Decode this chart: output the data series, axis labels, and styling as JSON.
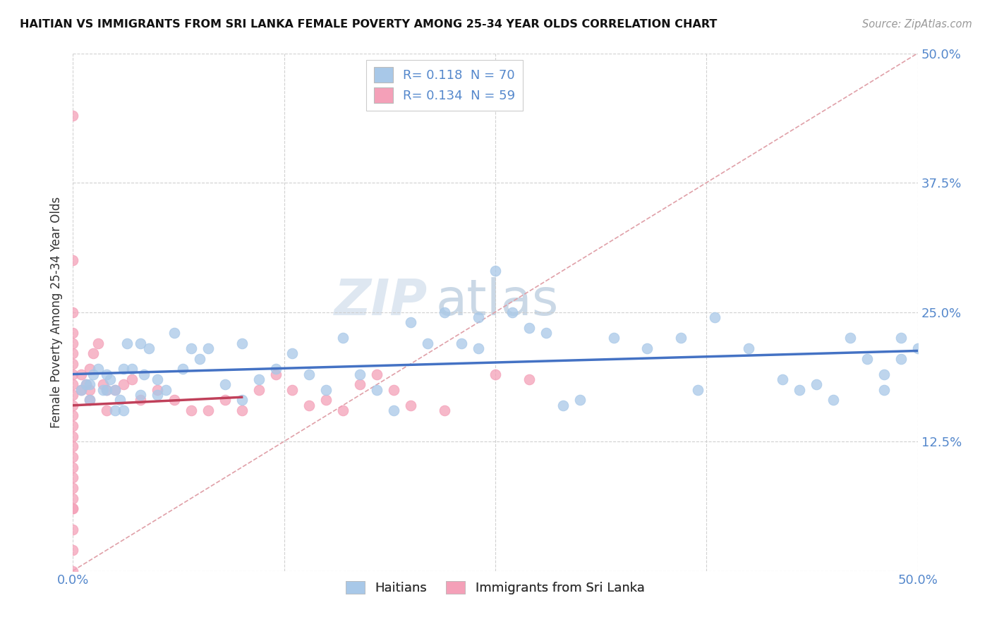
{
  "title": "HAITIAN VS IMMIGRANTS FROM SRI LANKA FEMALE POVERTY AMONG 25-34 YEAR OLDS CORRELATION CHART",
  "source": "Source: ZipAtlas.com",
  "ylabel": "Female Poverty Among 25-34 Year Olds",
  "xlim": [
    0,
    0.5
  ],
  "ylim": [
    0,
    0.5
  ],
  "haitian_R": 0.118,
  "haitian_N": 70,
  "srilanka_R": 0.134,
  "srilanka_N": 59,
  "haitian_color": "#A8C8E8",
  "srilanka_color": "#F4A0B8",
  "haitian_line_color": "#4472C4",
  "srilanka_line_color": "#C0405A",
  "diag_color": "#E0A0A8",
  "background_color": "#FFFFFF",
  "grid_color": "#CCCCCC",
  "tick_color": "#5588CC",
  "legend_labels": [
    "Haitians",
    "Immigrants from Sri Lanka"
  ],
  "haitian_x": [
    0.005,
    0.008,
    0.01,
    0.01,
    0.012,
    0.015,
    0.018,
    0.02,
    0.02,
    0.022,
    0.025,
    0.025,
    0.028,
    0.03,
    0.03,
    0.032,
    0.035,
    0.04,
    0.04,
    0.042,
    0.045,
    0.05,
    0.05,
    0.055,
    0.06,
    0.065,
    0.07,
    0.075,
    0.08,
    0.09,
    0.1,
    0.1,
    0.11,
    0.12,
    0.13,
    0.14,
    0.15,
    0.16,
    0.17,
    0.18,
    0.19,
    0.2,
    0.21,
    0.22,
    0.23,
    0.24,
    0.24,
    0.25,
    0.26,
    0.27,
    0.28,
    0.29,
    0.3,
    0.32,
    0.34,
    0.36,
    0.37,
    0.38,
    0.4,
    0.42,
    0.43,
    0.44,
    0.45,
    0.46,
    0.47,
    0.48,
    0.48,
    0.49,
    0.49,
    0.5
  ],
  "haitian_y": [
    0.175,
    0.18,
    0.165,
    0.18,
    0.19,
    0.195,
    0.175,
    0.19,
    0.175,
    0.185,
    0.175,
    0.155,
    0.165,
    0.155,
    0.195,
    0.22,
    0.195,
    0.22,
    0.17,
    0.19,
    0.215,
    0.185,
    0.17,
    0.175,
    0.23,
    0.195,
    0.215,
    0.205,
    0.215,
    0.18,
    0.165,
    0.22,
    0.185,
    0.195,
    0.21,
    0.19,
    0.175,
    0.225,
    0.19,
    0.175,
    0.155,
    0.24,
    0.22,
    0.25,
    0.22,
    0.245,
    0.215,
    0.29,
    0.25,
    0.235,
    0.23,
    0.16,
    0.165,
    0.225,
    0.215,
    0.225,
    0.175,
    0.245,
    0.215,
    0.185,
    0.175,
    0.18,
    0.165,
    0.225,
    0.205,
    0.19,
    0.175,
    0.225,
    0.205,
    0.215
  ],
  "srilanka_x": [
    0.0,
    0.0,
    0.0,
    0.0,
    0.0,
    0.0,
    0.0,
    0.0,
    0.0,
    0.0,
    0.0,
    0.0,
    0.0,
    0.0,
    0.0,
    0.0,
    0.0,
    0.0,
    0.0,
    0.0,
    0.0,
    0.0,
    0.0,
    0.0,
    0.0,
    0.005,
    0.005,
    0.008,
    0.01,
    0.01,
    0.01,
    0.012,
    0.015,
    0.018,
    0.02,
    0.02,
    0.025,
    0.03,
    0.035,
    0.04,
    0.05,
    0.06,
    0.07,
    0.08,
    0.09,
    0.1,
    0.11,
    0.12,
    0.13,
    0.14,
    0.15,
    0.16,
    0.17,
    0.18,
    0.19,
    0.2,
    0.22,
    0.25,
    0.27
  ],
  "srilanka_y": [
    0.0,
    0.02,
    0.04,
    0.06,
    0.06,
    0.07,
    0.08,
    0.09,
    0.1,
    0.11,
    0.12,
    0.13,
    0.14,
    0.15,
    0.16,
    0.17,
    0.18,
    0.19,
    0.2,
    0.21,
    0.22,
    0.23,
    0.25,
    0.3,
    0.44,
    0.175,
    0.19,
    0.18,
    0.195,
    0.175,
    0.165,
    0.21,
    0.22,
    0.18,
    0.155,
    0.175,
    0.175,
    0.18,
    0.185,
    0.165,
    0.175,
    0.165,
    0.155,
    0.155,
    0.165,
    0.155,
    0.175,
    0.19,
    0.175,
    0.16,
    0.165,
    0.155,
    0.18,
    0.19,
    0.175,
    0.16,
    0.155,
    0.19,
    0.185
  ]
}
